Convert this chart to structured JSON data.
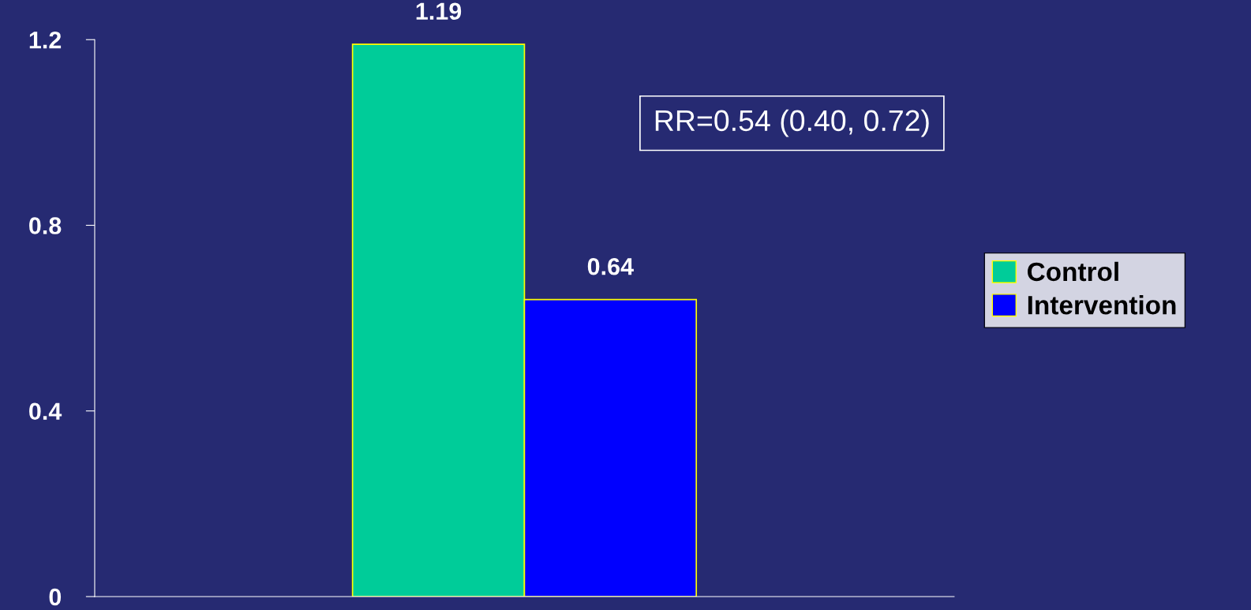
{
  "chart_data": {
    "type": "bar",
    "categories": [
      null
    ],
    "series": [
      {
        "name": "Control",
        "color": "#00cc99",
        "values": [
          1.19
        ]
      },
      {
        "name": "Intervention",
        "color": "#0000ff",
        "values": [
          0.64
        ]
      }
    ],
    "ylim": [
      0,
      1.2
    ],
    "yticks": [
      0,
      0.4,
      0.8,
      1.2
    ],
    "grid": false,
    "legend": "right",
    "data_labels": true,
    "annotations": [
      "RR=0.54 (0.40, 0.72)"
    ]
  }
}
